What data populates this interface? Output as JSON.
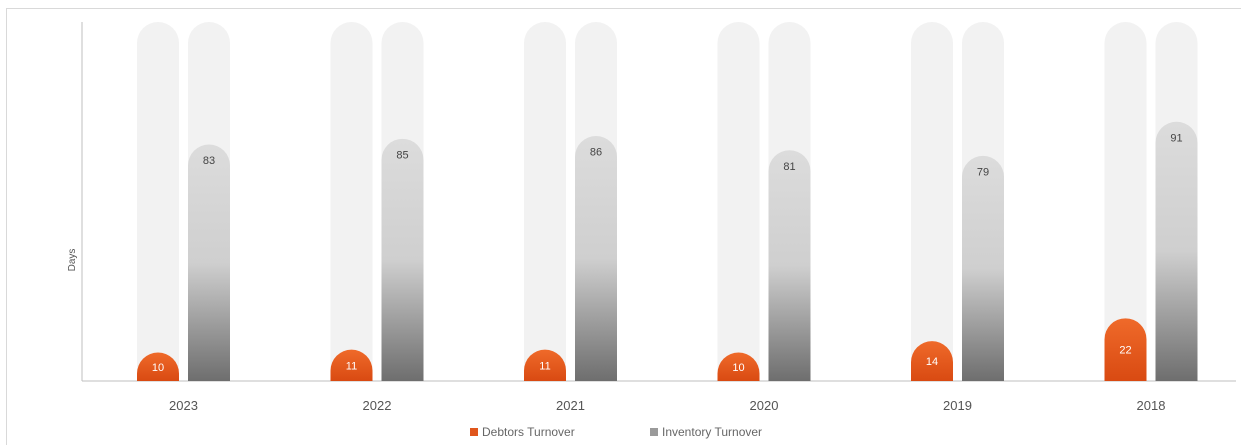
{
  "chart_data": {
    "type": "bar",
    "categories": [
      "2023",
      "2022",
      "2021",
      "2020",
      "2019",
      "2018"
    ],
    "series": [
      {
        "name": "Debtors Turnover",
        "values": [
          10,
          11,
          11,
          10,
          14,
          22
        ],
        "color": "#e0561c"
      },
      {
        "name": "Inventory Turnover",
        "values": [
          83,
          85,
          86,
          81,
          79,
          91
        ],
        "color": "#9a9a9a"
      }
    ],
    "xlabel": "",
    "ylabel": "Days",
    "ylim": [
      0,
      126
    ],
    "grid": false,
    "legend": "bottom-center",
    "track_color": "#f2f2f2"
  }
}
